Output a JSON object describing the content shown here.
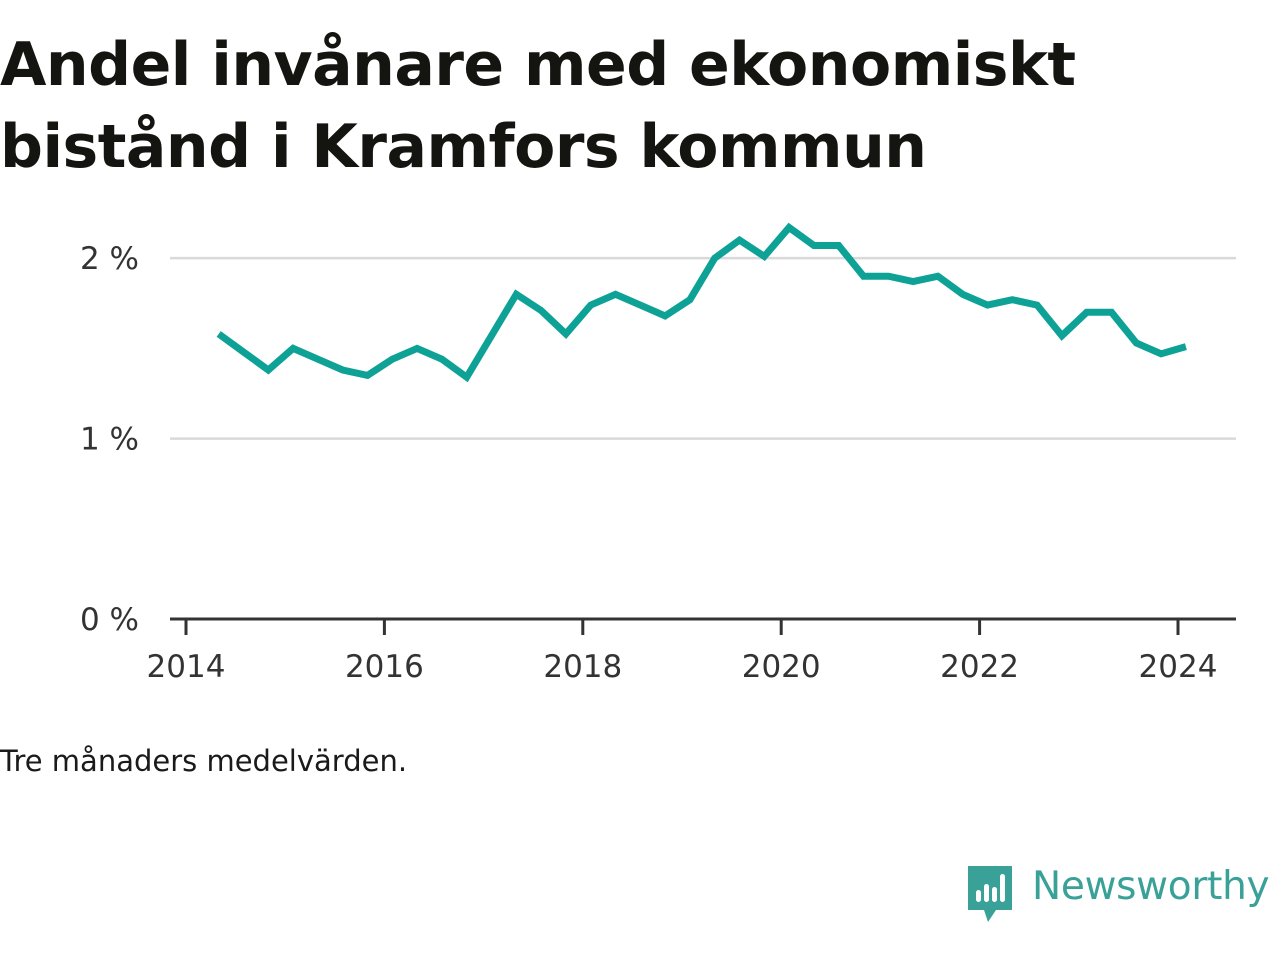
{
  "title": "Andel invånare med ekonomiskt bistånd i Kramfors kommun",
  "note": "Tre månaders medelvärden.",
  "brand": {
    "name": "Newsworthy",
    "icon": "newsworthy-logo-icon",
    "color": "#3aa198"
  },
  "chart_data": {
    "type": "line",
    "title": "Andel invånare med ekonomiskt bistånd i Kramfors kommun",
    "xlabel": "",
    "ylabel": "",
    "x_ticks": [
      "2014",
      "2016",
      "2018",
      "2020",
      "2022",
      "2024"
    ],
    "y_ticks": [
      "0 %",
      "1 %",
      "2 %"
    ],
    "xlim": [
      2014,
      2024.6
    ],
    "ylim": [
      0,
      2.4
    ],
    "grid": true,
    "legend": "none",
    "line_color": "#0ea297",
    "series": [
      {
        "x": [
          2014.33,
          2014.58,
          2014.83,
          2015.08,
          2015.33,
          2015.58,
          2015.83,
          2016.08,
          2016.33,
          2016.58,
          2016.83,
          2017.08,
          2017.33,
          2017.58,
          2017.83,
          2018.08,
          2018.33,
          2018.58,
          2018.83,
          2019.08,
          2019.33,
          2019.58,
          2019.83,
          2020.08,
          2020.33,
          2020.58,
          2020.83,
          2021.08,
          2021.33,
          2021.58,
          2021.83,
          2022.08,
          2022.33,
          2022.58,
          2022.83,
          2023.08,
          2023.33,
          2023.58,
          2023.83,
          2024.08
        ],
        "values": [
          1.58,
          1.48,
          1.38,
          1.5,
          1.44,
          1.38,
          1.35,
          1.44,
          1.5,
          1.44,
          1.34,
          1.57,
          1.8,
          1.71,
          1.58,
          1.74,
          1.8,
          1.74,
          1.68,
          1.77,
          2.0,
          2.1,
          2.01,
          2.17,
          2.07,
          2.07,
          1.9,
          1.9,
          1.87,
          1.9,
          1.8,
          1.74,
          1.77,
          1.74,
          1.57,
          1.7,
          1.7,
          1.53,
          1.47,
          1.51
        ]
      }
    ]
  }
}
